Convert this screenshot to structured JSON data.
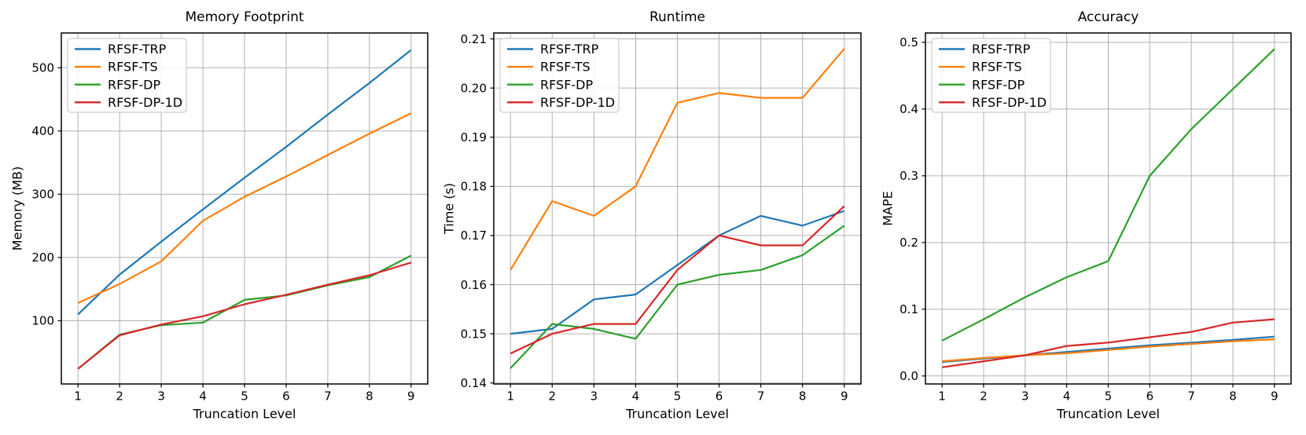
{
  "figure": {
    "kind": "matplotlib-figure",
    "background": "#ffffff"
  },
  "style": {
    "grid_color": "#b0b0b0",
    "spine_color": "#000000",
    "text_color": "#000000",
    "legend_edge_color": "#cccccc",
    "legend_face_color": "#ffffff"
  },
  "chart_data": [
    {
      "type": "line",
      "title": "Memory Footprint",
      "xlabel": "Truncation Level",
      "ylabel": "Memory (MB)",
      "x": [
        1,
        2,
        3,
        4,
        5,
        6,
        7,
        8,
        9
      ],
      "xlim": [
        0.6,
        9.4
      ],
      "ylim": [
        0,
        555
      ],
      "xticks": [
        1,
        2,
        3,
        4,
        5,
        6,
        7,
        8,
        9
      ],
      "xtick_labels": [
        "1",
        "2",
        "3",
        "4",
        "5",
        "6",
        "7",
        "8",
        "9"
      ],
      "yticks": [
        100,
        200,
        300,
        400,
        500
      ],
      "ytick_labels": [
        "100",
        "200",
        "300",
        "400",
        "500"
      ],
      "grid": true,
      "legend_position": "upper left",
      "series": [
        {
          "name": "RFSF-TRP",
          "color": "#1f77b4",
          "values": [
            110,
            173,
            225,
            276,
            326,
            375,
            426,
            476,
            528
          ]
        },
        {
          "name": "RFSF-TS",
          "color": "#ff7f0e",
          "values": [
            128,
            158,
            194,
            258,
            296,
            328,
            362,
            396,
            428
          ]
        },
        {
          "name": "RFSF-DP",
          "color": "#2ca02c",
          "values": [
            24,
            78,
            93,
            97,
            133,
            140,
            156,
            169,
            203
          ]
        },
        {
          "name": "RFSF-DP-1D",
          "color": "#d62728",
          "values": [
            24,
            77,
            94,
            107,
            126,
            141,
            157,
            172,
            192
          ]
        }
      ]
    },
    {
      "type": "line",
      "title": "Runtime",
      "xlabel": "Truncation Level",
      "ylabel": "Time (s)",
      "x": [
        1,
        2,
        3,
        4,
        5,
        6,
        7,
        8,
        9
      ],
      "xlim": [
        0.6,
        9.4
      ],
      "ylim": [
        0.1398,
        0.2112
      ],
      "xticks": [
        1,
        2,
        3,
        4,
        5,
        6,
        7,
        8,
        9
      ],
      "xtick_labels": [
        "1",
        "2",
        "3",
        "4",
        "5",
        "6",
        "7",
        "8",
        "9"
      ],
      "yticks": [
        0.14,
        0.15,
        0.16,
        0.17,
        0.18,
        0.19,
        0.2,
        0.21
      ],
      "ytick_labels": [
        "0.14",
        "0.15",
        "0.16",
        "0.17",
        "0.18",
        "0.19",
        "0.20",
        "0.21"
      ],
      "grid": true,
      "legend_position": "upper left",
      "series": [
        {
          "name": "RFSF-TRP",
          "color": "#1f77b4",
          "values": [
            0.15,
            0.151,
            0.157,
            0.158,
            0.164,
            0.17,
            0.174,
            0.172,
            0.175
          ]
        },
        {
          "name": "RFSF-TS",
          "color": "#ff7f0e",
          "values": [
            0.163,
            0.177,
            0.174,
            0.18,
            0.197,
            0.199,
            0.198,
            0.198,
            0.208
          ]
        },
        {
          "name": "RFSF-DP",
          "color": "#2ca02c",
          "values": [
            0.143,
            0.152,
            0.151,
            0.149,
            0.16,
            0.162,
            0.163,
            0.166,
            0.172
          ]
        },
        {
          "name": "RFSF-DP-1D",
          "color": "#d62728",
          "values": [
            0.146,
            0.15,
            0.152,
            0.152,
            0.163,
            0.17,
            0.168,
            0.168,
            0.176
          ]
        }
      ]
    },
    {
      "type": "line",
      "title": "Accuracy",
      "xlabel": "Truncation Level",
      "ylabel": "MAPE",
      "x": [
        1,
        2,
        3,
        4,
        5,
        6,
        7,
        8,
        9
      ],
      "xlim": [
        0.6,
        9.4
      ],
      "ylim": [
        -0.012,
        0.514
      ],
      "xticks": [
        1,
        2,
        3,
        4,
        5,
        6,
        7,
        8,
        9
      ],
      "xtick_labels": [
        "1",
        "2",
        "3",
        "4",
        "5",
        "6",
        "7",
        "8",
        "9"
      ],
      "yticks": [
        0.0,
        0.1,
        0.2,
        0.3,
        0.4,
        0.5
      ],
      "ytick_labels": [
        "0.0",
        "0.1",
        "0.2",
        "0.3",
        "0.4",
        "0.5"
      ],
      "grid": true,
      "legend_position": "upper left",
      "series": [
        {
          "name": "RFSF-TRP",
          "color": "#1f77b4",
          "values": [
            0.021,
            0.026,
            0.031,
            0.036,
            0.041,
            0.046,
            0.05,
            0.054,
            0.059
          ]
        },
        {
          "name": "RFSF-TS",
          "color": "#ff7f0e",
          "values": [
            0.022,
            0.027,
            0.031,
            0.034,
            0.039,
            0.044,
            0.048,
            0.052,
            0.055
          ]
        },
        {
          "name": "RFSF-DP",
          "color": "#2ca02c",
          "values": [
            0.053,
            0.085,
            0.118,
            0.148,
            0.172,
            0.3,
            0.37,
            0.43,
            0.49
          ]
        },
        {
          "name": "RFSF-DP-1D",
          "color": "#d62728",
          "values": [
            0.013,
            0.022,
            0.031,
            0.045,
            0.05,
            0.058,
            0.066,
            0.08,
            0.085
          ]
        }
      ]
    }
  ]
}
